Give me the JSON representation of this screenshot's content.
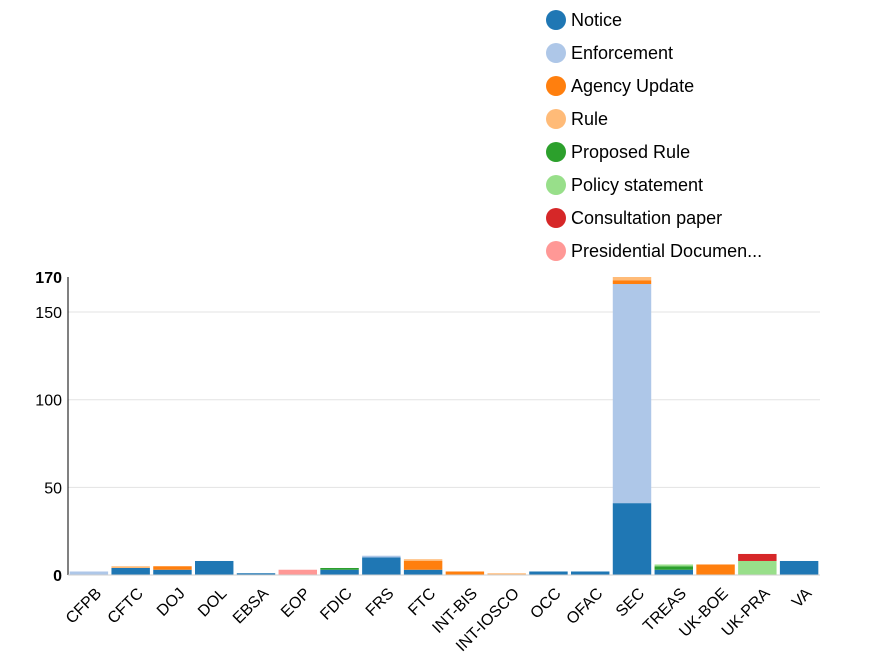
{
  "chart_data": {
    "type": "bar",
    "stacked": true,
    "categories": [
      "CFPB",
      "CFTC",
      "DOJ",
      "DOL",
      "EBSA",
      "EOP",
      "FDIC",
      "FRS",
      "FTC",
      "INT-BIS",
      "INT-IOSCO",
      "OCC",
      "OFAC",
      "SEC",
      "TREAS",
      "UK-BOE",
      "UK-PRA",
      "VA"
    ],
    "ylim": [
      0,
      170
    ],
    "yticks": [
      0,
      50,
      100,
      150
    ],
    "ymax_label": "170",
    "grid": true,
    "legend_position": "top-right",
    "series": [
      {
        "name": "Notice",
        "color": "#1f77b4",
        "values": [
          0,
          4,
          3,
          8,
          1,
          0,
          3,
          10,
          3,
          0,
          0,
          2,
          2,
          41,
          3,
          0,
          0,
          8
        ]
      },
      {
        "name": "Enforcement",
        "color": "#aec7e8",
        "values": [
          2,
          0,
          0,
          0,
          0,
          0,
          0,
          1,
          0,
          0,
          0,
          0,
          0,
          125,
          0,
          0,
          0,
          0
        ]
      },
      {
        "name": "Agency Update",
        "color": "#ff7f0e",
        "values": [
          0,
          0,
          2,
          0,
          0,
          0,
          0,
          0,
          5,
          2,
          0,
          0,
          0,
          2,
          0,
          6,
          0,
          0
        ]
      },
      {
        "name": "Rule",
        "color": "#ffbb78",
        "values": [
          0,
          1,
          0,
          0,
          0,
          0,
          0,
          0,
          1,
          0,
          1,
          0,
          0,
          2,
          0,
          0,
          0,
          0
        ]
      },
      {
        "name": "Proposed Rule",
        "color": "#2ca02c",
        "values": [
          0,
          0,
          0,
          0,
          0,
          0,
          1,
          0,
          0,
          0,
          0,
          0,
          0,
          0,
          2,
          0,
          0,
          0
        ]
      },
      {
        "name": "Policy statement",
        "color": "#98df8a",
        "values": [
          0,
          0,
          0,
          0,
          0,
          0,
          0,
          0,
          0,
          0,
          0,
          0,
          0,
          0,
          1,
          0,
          8,
          0
        ]
      },
      {
        "name": "Consultation paper",
        "color": "#d62728",
        "values": [
          0,
          0,
          0,
          0,
          0,
          0,
          0,
          0,
          0,
          0,
          0,
          0,
          0,
          0,
          0,
          0,
          4,
          0
        ]
      },
      {
        "name": "Presidential Documen...",
        "color": "#ff9896",
        "values": [
          0,
          0,
          0,
          0,
          0,
          3,
          0,
          0,
          0,
          0,
          0,
          0,
          0,
          0,
          0,
          0,
          0,
          0
        ]
      }
    ]
  }
}
